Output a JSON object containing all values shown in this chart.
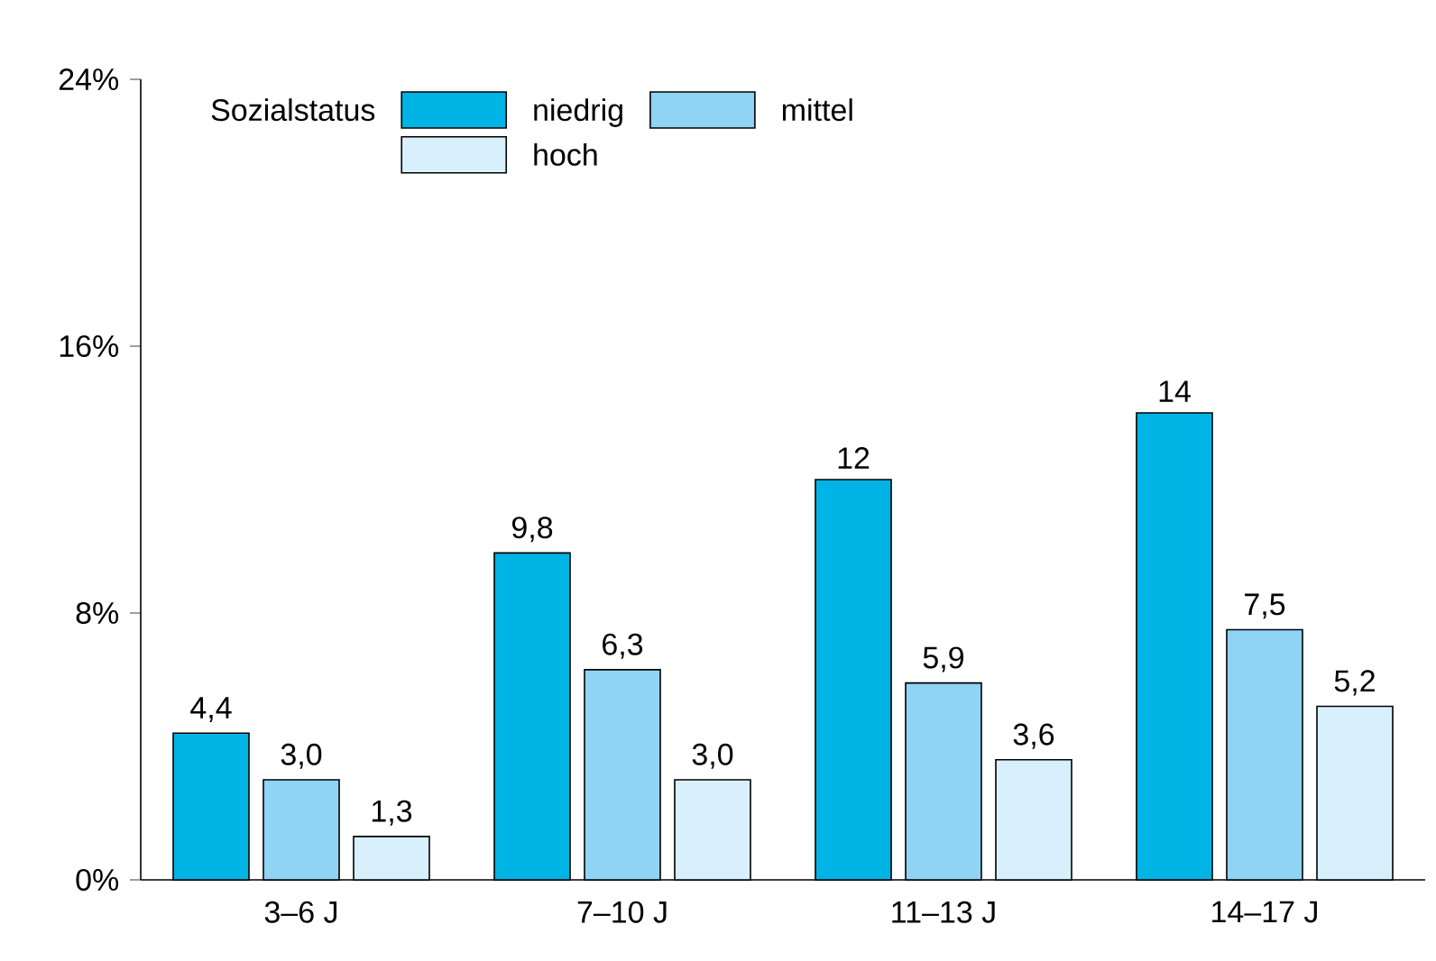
{
  "chart_data": {
    "type": "bar",
    "categories": [
      "3–6 J",
      "7–10 J",
      "11–13 J",
      "14–17 J"
    ],
    "legend_title": "Sozialstatus",
    "series": [
      {
        "name": "niedrig",
        "color": "#00b4e6",
        "values": [
          4.4,
          9.8,
          12,
          14
        ],
        "value_labels": [
          "4,4",
          "9,8",
          "12",
          "14"
        ]
      },
      {
        "name": "mittel",
        "color": "#8fd3f5",
        "values": [
          3.0,
          6.3,
          5.9,
          7.5
        ],
        "value_labels": [
          "3,0",
          "6,3",
          "5,9",
          "7,5"
        ]
      },
      {
        "name": "hoch",
        "color": "#d7f0fc",
        "values": [
          1.3,
          3.0,
          3.6,
          5.2
        ],
        "value_labels": [
          "1,3",
          "3,0",
          "3,6",
          "5,2"
        ]
      }
    ],
    "ylim": [
      0,
      24
    ],
    "yticks": [
      {
        "value": 0,
        "label": "0%"
      },
      {
        "value": 8,
        "label": "8%"
      },
      {
        "value": 16,
        "label": "16%"
      },
      {
        "value": 24,
        "label": "24%"
      }
    ],
    "grid": false,
    "legend": "top left"
  }
}
